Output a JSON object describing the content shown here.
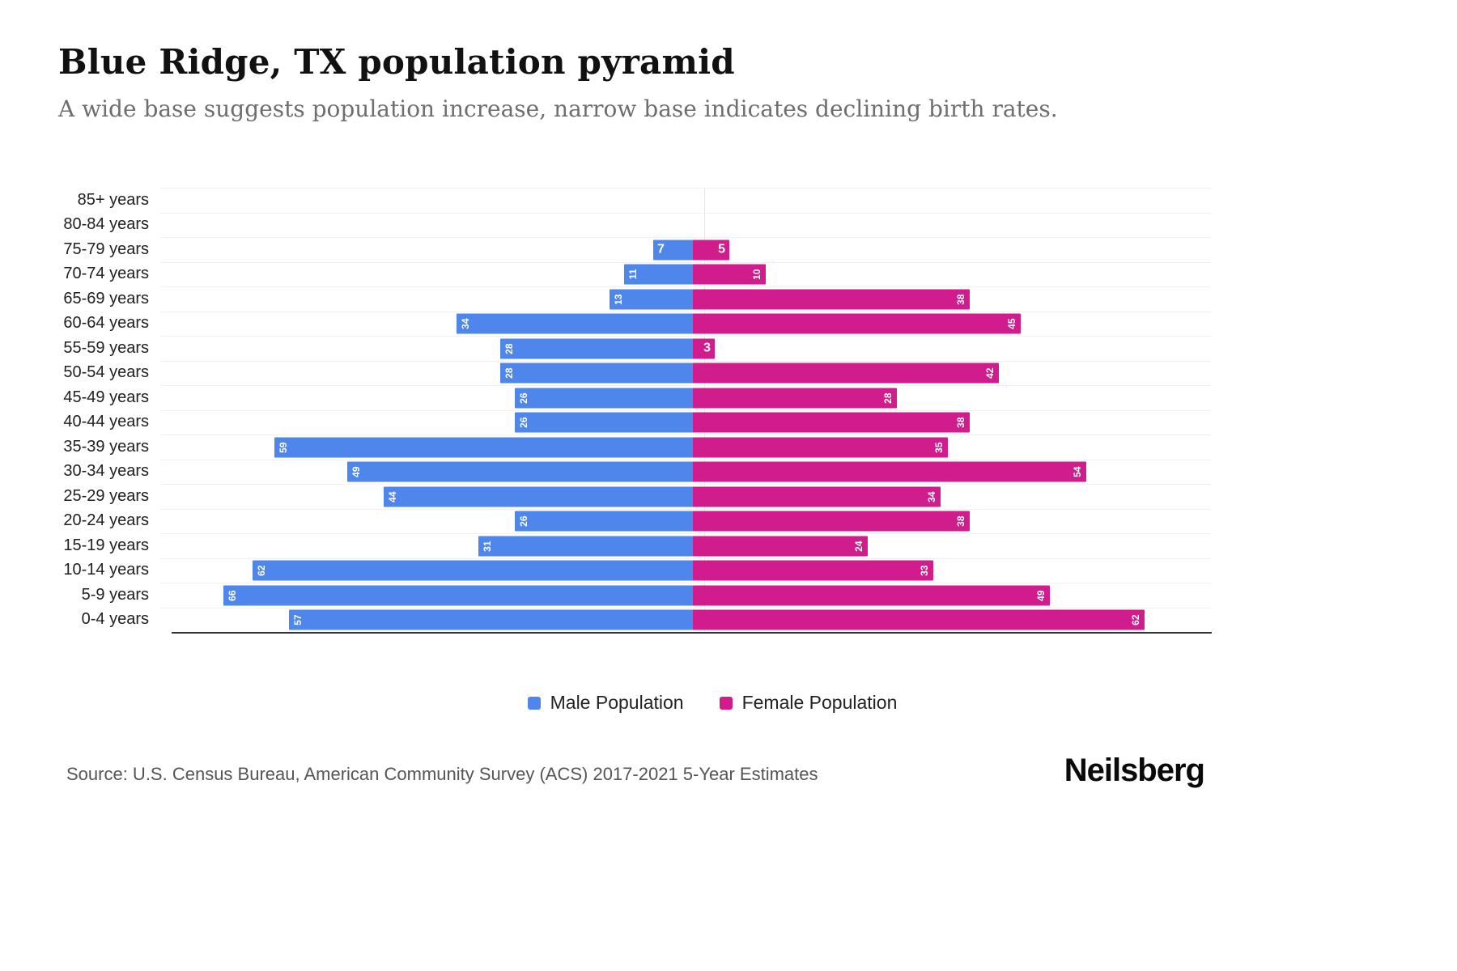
{
  "header": {
    "title": "Blue Ridge, TX population pyramid",
    "subtitle": "A wide base suggests population increase, narrow base indicates declining birth rates."
  },
  "chart_data": {
    "type": "bar",
    "variant": "population-pyramid",
    "orientation": "horizontal",
    "grid": true,
    "center_line": true,
    "legend_position": "bottom-center",
    "categories": [
      "85+ years",
      "80-84 years",
      "75-79 years",
      "70-74 years",
      "65-69 years",
      "60-64 years",
      "55-59 years",
      "50-54 years",
      "45-49 years",
      "40-44 years",
      "35-39 years",
      "30-34 years",
      "25-29 years",
      "20-24 years",
      "15-19 years",
      "10-14 years",
      "5-9 years",
      "0-4 years"
    ],
    "series": [
      {
        "name": "Male Population",
        "side": "left",
        "color": "#4f86ec",
        "values": [
          0,
          0,
          7,
          11,
          13,
          34,
          28,
          28,
          26,
          26,
          59,
          49,
          44,
          26,
          31,
          62,
          66,
          57
        ]
      },
      {
        "name": "Female Population",
        "side": "right",
        "color": "#d01c8c",
        "values": [
          0,
          0,
          5,
          10,
          38,
          45,
          3,
          42,
          28,
          38,
          35,
          54,
          34,
          38,
          24,
          33,
          49,
          62
        ]
      }
    ],
    "x_axis": {
      "max_each_side": 70,
      "value_labels": "inside-bar-end"
    }
  },
  "footer": {
    "source": "Source: U.S. Census Bureau, American Community Survey (ACS) 2017-2021 5-Year Estimates",
    "brand": "Neilsberg"
  }
}
